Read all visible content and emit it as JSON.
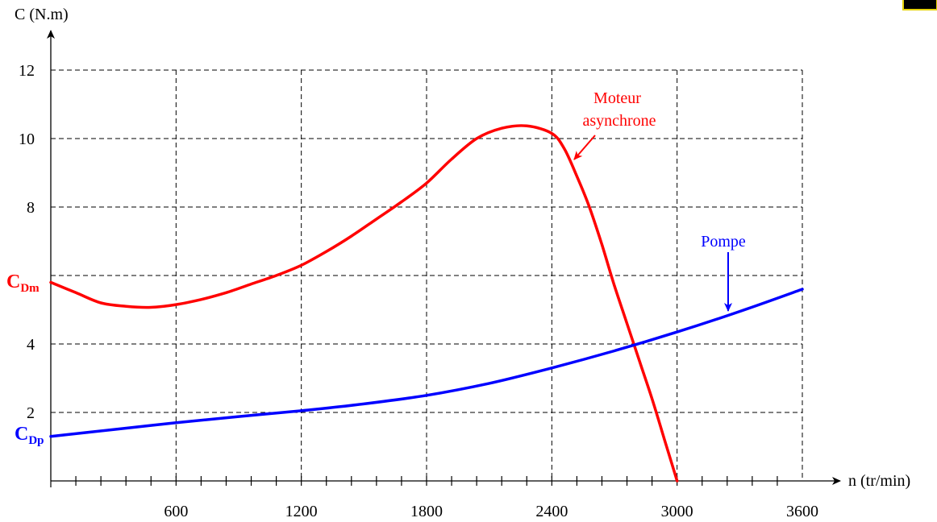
{
  "chart_data": {
    "type": "line",
    "xlabel": "n (tr/min)",
    "ylabel": "C (N.m)",
    "xlim": [
      0,
      3600
    ],
    "ylim": [
      0,
      12
    ],
    "x_ticks": [
      600,
      1200,
      1800,
      2400,
      3000,
      3600
    ],
    "x_minor_step": 120,
    "y_ticks": [
      2,
      4,
      8,
      10,
      12
    ],
    "grid": true,
    "series": [
      {
        "name": "Moteur asynchrone",
        "color": "#ff0000",
        "x": [
          0,
          120,
          240,
          360,
          480,
          600,
          720,
          840,
          960,
          1080,
          1200,
          1320,
          1440,
          1560,
          1680,
          1800,
          1920,
          2040,
          2160,
          2280,
          2400,
          2460,
          2520,
          2580,
          2640,
          2700,
          2760,
          2820,
          2880,
          2940,
          3000
        ],
        "y": [
          5.8,
          5.5,
          5.2,
          5.1,
          5.07,
          5.15,
          5.3,
          5.5,
          5.75,
          6.0,
          6.3,
          6.7,
          7.15,
          7.65,
          8.15,
          8.7,
          9.4,
          10.0,
          10.3,
          10.37,
          10.15,
          9.7,
          8.9,
          8.0,
          6.9,
          5.7,
          4.6,
          3.5,
          2.4,
          1.2,
          0.0
        ]
      },
      {
        "name": "Pompe",
        "color": "#0000ff",
        "x": [
          0,
          300,
          600,
          900,
          1200,
          1500,
          1800,
          2100,
          2400,
          2700,
          3000,
          3300,
          3600
        ],
        "y": [
          1.3,
          1.5,
          1.7,
          1.88,
          2.05,
          2.25,
          2.5,
          2.85,
          3.3,
          3.8,
          4.35,
          4.95,
          5.6
        ]
      }
    ],
    "annotations": [
      {
        "id": "moteur",
        "lines": [
          "Moteur",
          "asynchrone"
        ],
        "color": "#ff0000"
      },
      {
        "id": "pompe",
        "lines": [
          "Pompe"
        ],
        "color": "#0000ff"
      },
      {
        "id": "cdm",
        "main": "C",
        "sub": "Dm",
        "color": "#ff0000"
      },
      {
        "id": "cdp",
        "main": "C",
        "sub": "Dp",
        "color": "#0000ff"
      }
    ]
  }
}
